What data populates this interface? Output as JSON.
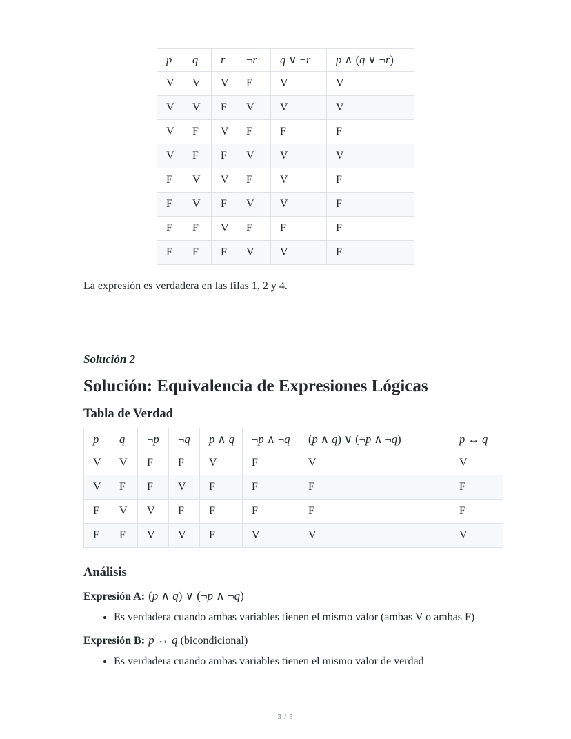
{
  "table1": {
    "headers": [
      "p",
      "q",
      "r",
      "¬r",
      "q ∨ ¬r",
      "p ∧ (q ∨ ¬r)"
    ],
    "rows": [
      [
        "V",
        "V",
        "V",
        "F",
        "V",
        "V"
      ],
      [
        "V",
        "V",
        "F",
        "V",
        "V",
        "V"
      ],
      [
        "V",
        "F",
        "V",
        "F",
        "F",
        "F"
      ],
      [
        "V",
        "F",
        "F",
        "V",
        "V",
        "V"
      ],
      [
        "F",
        "V",
        "V",
        "F",
        "V",
        "F"
      ],
      [
        "F",
        "V",
        "F",
        "V",
        "V",
        "F"
      ],
      [
        "F",
        "F",
        "V",
        "F",
        "F",
        "F"
      ],
      [
        "F",
        "F",
        "F",
        "V",
        "V",
        "F"
      ]
    ]
  },
  "note": "La expresión es verdadera en las filas 1, 2 y 4.",
  "solution2": {
    "kicker": "Solución 2",
    "title": "Solución: Equivalencia de Expresiones Lógicas",
    "table_heading": "Tabla de Verdad",
    "table2": {
      "headers": [
        "p",
        "q",
        "¬p",
        "¬q",
        "p ∧ q",
        "¬p ∧ ¬q",
        "(p ∧ q) ∨ (¬p ∧ ¬q)",
        "p ↔ q"
      ],
      "rows": [
        [
          "V",
          "V",
          "F",
          "F",
          "V",
          "F",
          "V",
          "V"
        ],
        [
          "V",
          "F",
          "F",
          "V",
          "F",
          "F",
          "F",
          "F"
        ],
        [
          "F",
          "V",
          "V",
          "F",
          "F",
          "F",
          "F",
          "F"
        ],
        [
          "F",
          "F",
          "V",
          "V",
          "F",
          "V",
          "V",
          "V"
        ]
      ]
    },
    "analysis": {
      "heading": "Análisis",
      "expr_a_label": "Expresión A:",
      "expr_a_formula": "(p ∧ q) ∨ (¬p ∧ ¬q)",
      "expr_a_bullet": "Es verdadera cuando ambas variables tienen el mismo valor (ambas V o ambas F)",
      "expr_b_label": "Expresión B:",
      "expr_b_formula": "p ↔ q",
      "expr_b_suffix": "(bicondicional)",
      "expr_b_bullet": "Es verdadera cuando ambas variables tienen el mismo valor de verdad"
    }
  },
  "footer": "3 / 5"
}
